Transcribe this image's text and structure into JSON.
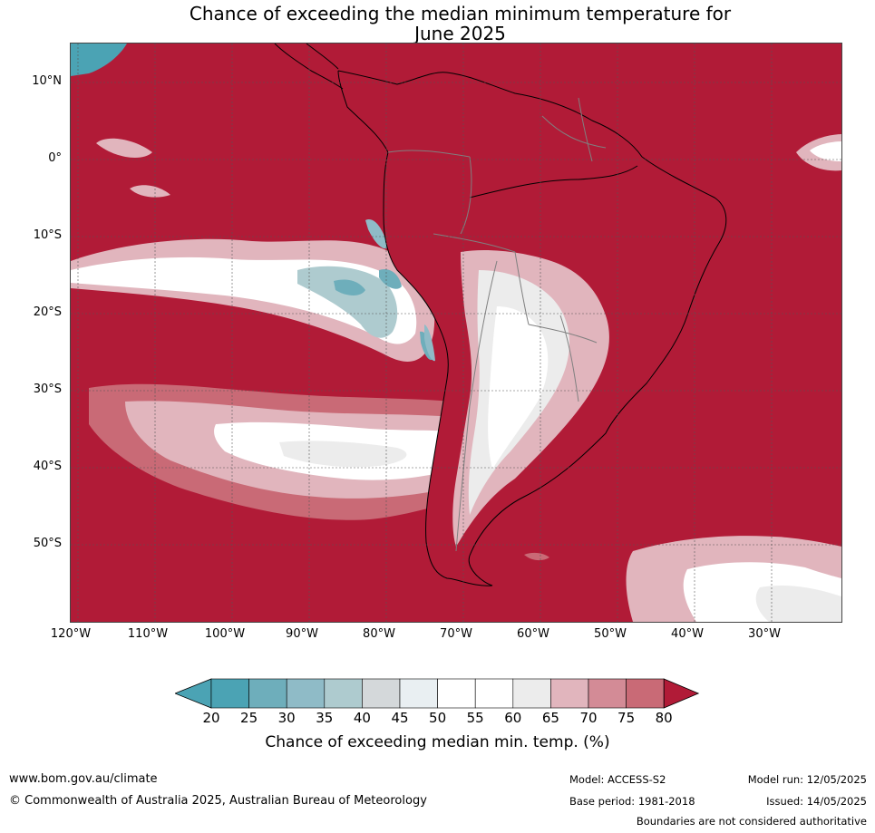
{
  "title": {
    "line1": "Chance of exceeding the median minimum temperature for",
    "line2": "June 2025"
  },
  "map": {
    "lat_labels": [
      "10°N",
      "0°",
      "10°S",
      "20°S",
      "30°S",
      "40°S",
      "50°S"
    ],
    "lon_labels": [
      "120°W",
      "110°W",
      "100°W",
      "90°W",
      "80°W",
      "70°W",
      "60°W",
      "50°W",
      "40°W",
      "30°W"
    ],
    "colors": {
      "c20": "#4ba3b4",
      "c25": "#6eaebb",
      "c30": "#8fbbc7",
      "c35": "#aecbcf",
      "c40": "#d4d8da",
      "c45": "#e9eff2",
      "c50": "#ffffff",
      "c55": "#ffffff",
      "c60": "#ececec",
      "c65": "#e1b5bd",
      "c70": "#d38b96",
      "c75": "#c96a76",
      "c80": "#c04656",
      "c80plus": "#b11b37",
      "coast": "#000000",
      "border": "#808080",
      "grid": "#555555"
    }
  },
  "colorbar": {
    "ticks": [
      "20",
      "25",
      "30",
      "35",
      "40",
      "45",
      "50",
      "55",
      "60",
      "65",
      "70",
      "75",
      "80"
    ],
    "label": "Chance of exceeding median min. temp. (%)"
  },
  "footer": {
    "website": "www.bom.gov.au/climate",
    "copyright": "© Commonwealth of Australia 2025, Australian Bureau of Meteorology",
    "model": "Model: ACCESS-S2",
    "base_period": "Base period: 1981-2018",
    "model_run": "Model run: 12/05/2025",
    "issued": "Issued: 14/05/2025",
    "boundaries_note": "Boundaries are not considered authoritative"
  }
}
